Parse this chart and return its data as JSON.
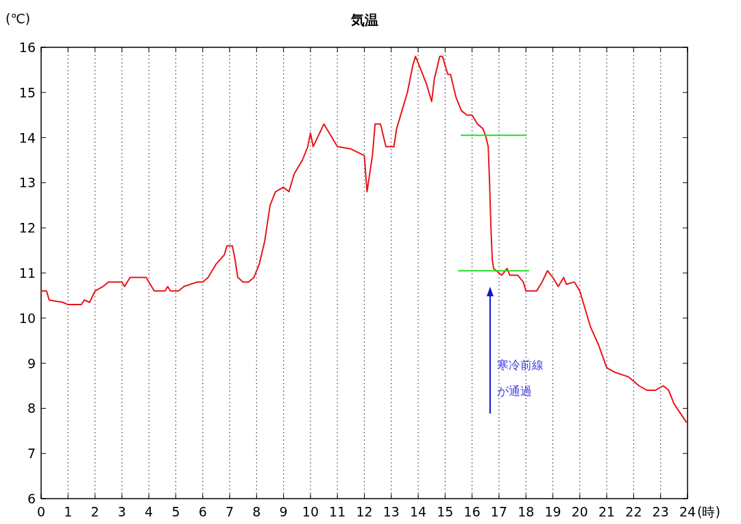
{
  "chart_data": {
    "type": "line",
    "title": "気温",
    "ylabel": "(℃)",
    "xlabel": "(時)",
    "xlim": [
      0,
      24
    ],
    "xticks": [
      0,
      1,
      2,
      3,
      4,
      5,
      6,
      7,
      8,
      9,
      10,
      11,
      12,
      13,
      14,
      15,
      16,
      17,
      18,
      19,
      20,
      21,
      22,
      23,
      24
    ],
    "ylim": [
      6,
      16
    ],
    "yticks": [
      6,
      7,
      8,
      9,
      10,
      11,
      12,
      13,
      14,
      15,
      16
    ],
    "grid": "x",
    "line_style": "solid",
    "marker": "none",
    "series": [
      {
        "color": "#e8141b",
        "x": [
          0,
          0.2,
          0.3,
          0.8,
          1.0,
          1.5,
          1.6,
          1.8,
          2.0,
          2.3,
          2.5,
          3.0,
          3.1,
          3.3,
          3.9,
          4.2,
          4.6,
          4.7,
          4.8,
          5.1,
          5.3,
          5.8,
          6.0,
          6.2,
          6.5,
          6.8,
          6.9,
          7.1,
          7.2,
          7.3,
          7.5,
          7.7,
          7.9,
          8.1,
          8.3,
          8.5,
          8.7,
          9.0,
          9.2,
          9.4,
          9.7,
          9.9,
          10.0,
          10.1,
          10.5,
          10.6,
          11.0,
          11.5,
          12.0,
          12.1,
          12.3,
          12.4,
          12.6,
          12.8,
          13.1,
          13.2,
          13.4,
          13.6,
          13.8,
          13.9,
          14.1,
          14.3,
          14.5,
          14.6,
          14.8,
          14.9,
          15.1,
          15.2,
          15.4,
          15.6,
          15.8,
          16.0,
          16.2,
          16.4,
          16.5,
          16.6,
          16.65,
          16.7,
          16.75,
          16.8,
          17.0,
          17.1,
          17.3,
          17.4,
          17.7,
          17.9,
          18.0,
          18.4,
          18.6,
          18.8,
          19.0,
          19.2,
          19.4,
          19.5,
          19.8,
          20.0,
          20.1,
          20.4,
          20.7,
          21.0,
          21.3,
          21.8,
          22.2,
          22.5,
          22.8,
          23.1,
          23.3,
          23.5,
          23.95
        ],
        "values": [
          10.6,
          10.6,
          10.4,
          10.35,
          10.3,
          10.3,
          10.4,
          10.35,
          10.6,
          10.7,
          10.8,
          10.8,
          10.7,
          10.9,
          10.9,
          10.6,
          10.6,
          10.7,
          10.6,
          10.6,
          10.7,
          10.8,
          10.8,
          10.9,
          11.2,
          11.4,
          11.6,
          11.6,
          11.3,
          10.9,
          10.8,
          10.8,
          10.9,
          11.2,
          11.7,
          12.5,
          12.8,
          12.9,
          12.8,
          13.2,
          13.5,
          13.8,
          14.1,
          13.8,
          14.3,
          14.2,
          13.8,
          13.75,
          13.6,
          12.8,
          13.6,
          14.3,
          14.3,
          13.8,
          13.8,
          14.2,
          14.6,
          15.0,
          15.6,
          15.8,
          15.5,
          15.2,
          14.8,
          15.3,
          15.8,
          15.8,
          15.4,
          15.4,
          14.9,
          14.6,
          14.5,
          14.5,
          14.3,
          14.2,
          14.05,
          13.8,
          13.0,
          12.0,
          11.3,
          11.1,
          11.0,
          10.95,
          11.1,
          10.95,
          10.95,
          10.8,
          10.6,
          10.6,
          10.8,
          11.05,
          10.9,
          10.7,
          10.9,
          10.75,
          10.8,
          10.6,
          10.4,
          9.8,
          9.4,
          8.9,
          8.8,
          8.7,
          8.5,
          8.4,
          8.4,
          8.5,
          8.4,
          8.1,
          7.7
        ]
      },
      {
        "color": "#22dd22",
        "x": [
          15.6,
          18.0
        ],
        "values": [
          14.05,
          14.05
        ]
      },
      {
        "color": "#22dd22",
        "x": [
          15.5,
          18.1
        ],
        "values": [
          11.05,
          11.05
        ]
      }
    ],
    "annotations": [
      "寒冷前線が通過"
    ]
  }
}
